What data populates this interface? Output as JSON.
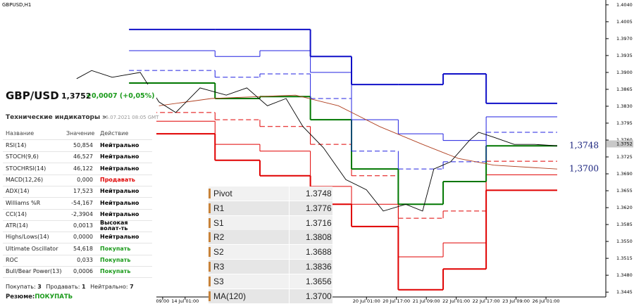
{
  "chart_data": {
    "type": "line",
    "title": "GBPUSD,H1",
    "xlim": [
      12,
      336
    ],
    "ylim": [
      1.3435,
      1.405
    ],
    "xticks": [
      {
        "value": 99,
        "label": "09:00"
      },
      {
        "value": 111,
        "label": "14 Jul 01:00"
      },
      {
        "value": 208,
        "label": "20 Jul 01:00"
      },
      {
        "value": 224,
        "label": "20 Jul 17:00"
      },
      {
        "value": 240,
        "label": "21 Jul 09:00"
      },
      {
        "value": 256,
        "label": "22 Jul 01:00"
      },
      {
        "value": 272,
        "label": "22 Jul 17:00"
      },
      {
        "value": 288,
        "label": "23 Jul 09:00"
      },
      {
        "value": 304,
        "label": "26 Jul 01:00"
      }
    ],
    "yticks": [
      {
        "value": 1.404,
        "label": "1.4040"
      },
      {
        "value": 1.4005,
        "label": "1.4005"
      },
      {
        "value": 1.397,
        "label": "1.3970"
      },
      {
        "value": 1.3935,
        "label": "1.3935"
      },
      {
        "value": 1.39,
        "label": "1.3900"
      },
      {
        "value": 1.3865,
        "label": "1.3865"
      },
      {
        "value": 1.383,
        "label": "1.3830"
      },
      {
        "value": 1.3795,
        "label": "1.3795"
      },
      {
        "value": 1.376,
        "label": "1.3760"
      },
      {
        "value": 1.3725,
        "label": "1.3725"
      },
      {
        "value": 1.369,
        "label": "1.3690"
      },
      {
        "value": 1.3655,
        "label": "1.3655"
      },
      {
        "value": 1.362,
        "label": "1.3620"
      },
      {
        "value": 1.3585,
        "label": "1.3585"
      },
      {
        "value": 1.355,
        "label": "1.3550"
      },
      {
        "value": 1.3515,
        "label": "1.3515"
      },
      {
        "value": 1.348,
        "label": "1.3480"
      },
      {
        "value": 1.3445,
        "label": "1.3445"
      }
    ],
    "step_edges": [
      81,
      127,
      151,
      178,
      200,
      225,
      249,
      272,
      310
    ],
    "series": [
      {
        "color": "#000000",
        "x": [
          53,
          61,
          72,
          87,
          97,
          106,
          119,
          133,
          144,
          155,
          165,
          174,
          185,
          197,
          208,
          217,
          229,
          238,
          244,
          253,
          263,
          268,
          276,
          287,
          298,
          310
        ],
        "values": [
          1.3887,
          1.3904,
          1.389,
          1.39,
          1.3839,
          1.3817,
          1.3868,
          1.3853,
          1.3868,
          1.3831,
          1.3846,
          1.3788,
          1.3744,
          1.3678,
          1.3657,
          1.3613,
          1.3627,
          1.3613,
          1.37,
          1.3715,
          1.3759,
          1.3776,
          1.3766,
          1.3751,
          1.3751,
          1.3748
        ]
      },
      {
        "name": "MA(120)",
        "color": "#b04020",
        "x": [
          97,
          125,
          170,
          193,
          215,
          238,
          257,
          276,
          310
        ],
        "values": [
          1.3831,
          1.3846,
          1.3853,
          1.3831,
          1.3788,
          1.3751,
          1.3722,
          1.3708,
          1.37
        ]
      },
      {
        "name": "R3",
        "color": "#1010c8",
        "values": [
          1.3989,
          1.3989,
          1.3989,
          1.3933,
          1.3875,
          1.3875,
          1.3897,
          1.3836
        ]
      },
      {
        "name": "R2",
        "color": "#2020e0",
        "values": [
          1.3945,
          1.3933,
          1.3945,
          1.39,
          1.3802,
          1.3773,
          1.3759,
          1.3808
        ]
      },
      {
        "name": "R1",
        "color": "#2020e0",
        "values": [
          1.3904,
          1.389,
          1.3897,
          1.3846,
          1.3737,
          1.37,
          1.3715,
          1.3776
        ]
      },
      {
        "name": "Pivot",
        "color": "#007700",
        "values": [
          1.3878,
          1.3846,
          1.385,
          1.3802,
          1.37,
          1.3627,
          1.3674,
          1.3748
        ]
      },
      {
        "name": "S1",
        "color": "#e00000",
        "values": [
          1.3817,
          1.3802,
          1.3788,
          1.3751,
          1.3686,
          1.3598,
          1.3613,
          1.3716
        ]
      },
      {
        "name": "S2",
        "color": "#e00000",
        "values": [
          1.3799,
          1.3751,
          1.3737,
          1.3664,
          1.3627,
          1.3518,
          1.3547,
          1.3688
        ]
      },
      {
        "name": "S3",
        "color": "#e00000",
        "values": [
          1.3773,
          1.3718,
          1.3686,
          1.3627,
          1.3581,
          1.345,
          1.3493,
          1.3656
        ]
      }
    ],
    "annotations": [
      {
        "text": "1,3748",
        "value": 1.3748
      },
      {
        "text": "1,3700",
        "value": 1.37
      }
    ],
    "current_price": {
      "value": 1.3752,
      "label": "1.3752"
    }
  },
  "panel": {
    "symbol": "GBP/USD",
    "price": "1,3752",
    "change": "+0,0007 (+0,05%)",
    "section": "Технические индикаторы »",
    "timestamp": "26.07.2021 08:05 GMT",
    "columns": [
      "Название",
      "Значение",
      "Действие"
    ],
    "rows": [
      {
        "name": "RSI(14)",
        "value": "50,854",
        "action": "Нейтрально",
        "color": "#000000"
      },
      {
        "name": "STOCH(9,6)",
        "value": "46,527",
        "action": "Нейтрально",
        "color": "#000000"
      },
      {
        "name": "STOCHRSI(14)",
        "value": "46,122",
        "action": "Нейтрально",
        "color": "#000000"
      },
      {
        "name": "MACD(12,26)",
        "value": "0,000",
        "action": "Продавать",
        "color": "#e00000"
      },
      {
        "name": "ADX(14)",
        "value": "17,523",
        "action": "Нейтрально",
        "color": "#000000"
      },
      {
        "name": "Williams %R",
        "value": "-54,167",
        "action": "Нейтрально",
        "color": "#000000"
      },
      {
        "name": "CCI(14)",
        "value": "-2,3904",
        "action": "Нейтрально",
        "color": "#000000"
      },
      {
        "name": "ATR(14)",
        "value": "0,0013",
        "action": "Высокая волат-ть",
        "color": "#000000"
      },
      {
        "name": "Highs/Lows(14)",
        "value": "0,0000",
        "action": "Нейтрально",
        "color": "#000000"
      },
      {
        "name": "Ultimate Oscillator",
        "value": "54,618",
        "action": "Покупать",
        "color": "#1a9a1a"
      },
      {
        "name": "ROC",
        "value": "0,033",
        "action": "Покупать",
        "color": "#1a9a1a"
      },
      {
        "name": "Bull/Bear Power(13)",
        "value": "0,0006",
        "action": "Покупать",
        "color": "#1a9a1a"
      }
    ],
    "summary": {
      "buy_label": "Покупать:",
      "buy": 3,
      "sell_label": "Продавать:",
      "sell": 1,
      "neutral_label": "Нейтрально:",
      "neutral": 7,
      "result_label": "Резюме:",
      "result": "ПОКУПАТЬ"
    }
  },
  "pivot_table": {
    "rows": [
      [
        "Pivot",
        "1.3748"
      ],
      [
        "R1",
        "1.3776"
      ],
      [
        "S1",
        "1.3716"
      ],
      [
        "R2",
        "1.3808"
      ],
      [
        "S2",
        "1.3688"
      ],
      [
        "R3",
        "1.3836"
      ],
      [
        "S3",
        "1.3656"
      ],
      [
        "MA(120)",
        "1.3700"
      ]
    ]
  }
}
